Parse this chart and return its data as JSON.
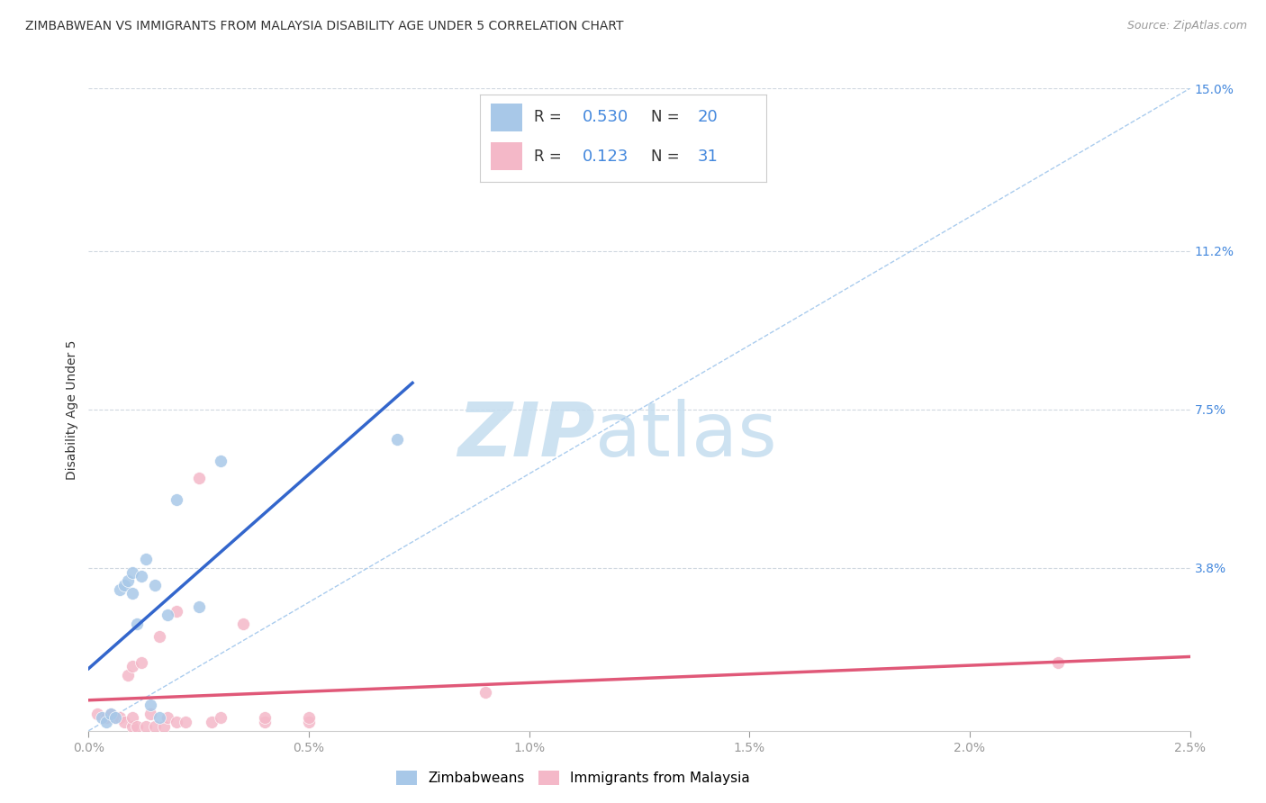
{
  "title": "ZIMBABWEAN VS IMMIGRANTS FROM MALAYSIA DISABILITY AGE UNDER 5 CORRELATION CHART",
  "source": "Source: ZipAtlas.com",
  "ylabel": "Disability Age Under 5",
  "xlim": [
    0.0,
    0.025
  ],
  "ylim": [
    0.0,
    0.15
  ],
  "xtick_vals": [
    0.0,
    0.005,
    0.01,
    0.015,
    0.02,
    0.025
  ],
  "xtick_labels": [
    "0.0%",
    "0.5%",
    "1.0%",
    "1.5%",
    "2.0%",
    "2.5%"
  ],
  "ytick_vals_right": [
    0.038,
    0.075,
    0.112,
    0.15
  ],
  "ytick_labels_right": [
    "3.8%",
    "7.5%",
    "11.2%",
    "15.0%"
  ],
  "blue_R": "0.530",
  "blue_N": "20",
  "pink_R": "0.123",
  "pink_N": "31",
  "blue_color": "#a8c8e8",
  "pink_color": "#f4b8c8",
  "blue_line_color": "#3366cc",
  "pink_line_color": "#e05878",
  "dashed_line_color": "#aaccee",
  "grid_color": "#d0d8e0",
  "blue_points_x": [
    0.0003,
    0.0004,
    0.0005,
    0.0006,
    0.0007,
    0.0008,
    0.0009,
    0.001,
    0.001,
    0.0011,
    0.0012,
    0.0013,
    0.0014,
    0.0015,
    0.0016,
    0.0018,
    0.002,
    0.0025,
    0.003,
    0.007
  ],
  "blue_points_y": [
    0.003,
    0.002,
    0.004,
    0.003,
    0.033,
    0.034,
    0.035,
    0.037,
    0.032,
    0.025,
    0.036,
    0.04,
    0.006,
    0.034,
    0.003,
    0.027,
    0.054,
    0.029,
    0.063,
    0.068
  ],
  "pink_points_x": [
    0.0002,
    0.0004,
    0.0005,
    0.0006,
    0.0007,
    0.0008,
    0.0009,
    0.001,
    0.001,
    0.001,
    0.0011,
    0.0012,
    0.0013,
    0.0014,
    0.0015,
    0.0016,
    0.0017,
    0.0018,
    0.002,
    0.002,
    0.0022,
    0.0025,
    0.0028,
    0.003,
    0.0035,
    0.004,
    0.004,
    0.005,
    0.005,
    0.009,
    0.022
  ],
  "pink_points_y": [
    0.004,
    0.003,
    0.004,
    0.003,
    0.003,
    0.002,
    0.013,
    0.001,
    0.003,
    0.015,
    0.001,
    0.016,
    0.001,
    0.004,
    0.001,
    0.022,
    0.001,
    0.003,
    0.002,
    0.028,
    0.002,
    0.059,
    0.002,
    0.003,
    0.025,
    0.002,
    0.003,
    0.002,
    0.003,
    0.009,
    0.016
  ],
  "title_fontsize": 10,
  "source_fontsize": 9,
  "ylabel_fontsize": 10,
  "tick_fontsize": 10,
  "marker_size": 100,
  "background_color": "#ffffff",
  "watermark_zip_color": "#c8dff0",
  "watermark_atlas_color": "#c8dff0"
}
